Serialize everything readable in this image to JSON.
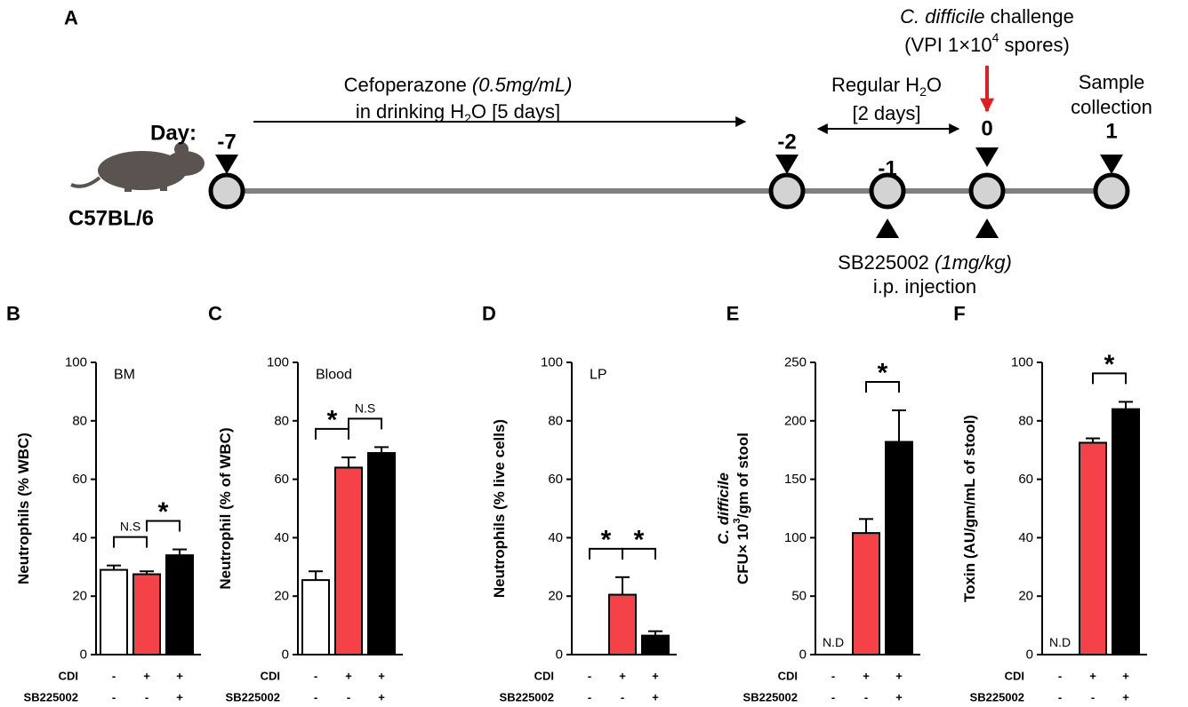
{
  "timeline": {
    "panel_label": "A",
    "day_prefix": "Day:",
    "strain": "C57BL/6",
    "days": [
      "-7",
      "-2",
      "-1",
      "0",
      "1"
    ],
    "texts": [
      [
        {
          "text": "C. difficile",
          "style": "italic"
        },
        {
          "text": " challenge"
        }
      ],
      [
        {
          "text": "(VPI 1×10"
        },
        {
          "text": "4",
          "style": "sup"
        },
        {
          "text": " spores)"
        }
      ],
      [
        {
          "text": "Cefoperazone "
        },
        {
          "text": "(0.5mg/mL)",
          "style": "italic"
        }
      ],
      [
        {
          "text": "in drinking H"
        },
        {
          "text": "2",
          "style": "sub"
        },
        {
          "text": "O [5 days]"
        }
      ],
      [
        {
          "text": "Regular H"
        },
        {
          "text": "2",
          "style": "sub"
        },
        {
          "text": "O"
        }
      ],
      [
        {
          "text": "[2 days]"
        }
      ],
      [
        {
          "text": "Sample"
        }
      ],
      [
        {
          "text": "collection"
        }
      ],
      [
        {
          "text": "SB225002 "
        },
        {
          "text": "(1mg/kg)",
          "style": "italic"
        }
      ],
      [
        {
          "text": "i.p. injection"
        }
      ]
    ]
  },
  "chart_data": [
    {
      "type": "bar",
      "panel_label": "B",
      "inner_label": "BM",
      "ylabel": [
        [
          {
            "text": "Neutrophils (% WBC)"
          }
        ]
      ],
      "ylim": [
        0,
        100
      ],
      "yticks": [
        0,
        20,
        40,
        60,
        80,
        100
      ],
      "values": [
        29,
        27.5,
        34
      ],
      "errors": [
        1.5,
        1,
        2
      ],
      "colors": [
        "#ffffff",
        "#f44248",
        "#000000"
      ],
      "conditions": [
        {
          "name": "CDI",
          "marks": [
            "-",
            "+",
            "+"
          ]
        },
        {
          "name": "SB225002",
          "marks": [
            "-",
            "-",
            "+"
          ]
        }
      ],
      "annotations": [
        {
          "text": "N.S",
          "between": [
            0,
            1
          ]
        },
        {
          "text": "*",
          "between": [
            1,
            2
          ]
        }
      ]
    },
    {
      "type": "bar",
      "panel_label": "C",
      "inner_label": "Blood",
      "ylabel": [
        [
          {
            "text": "Neutrophil (% of WBC)"
          }
        ]
      ],
      "ylim": [
        0,
        100
      ],
      "yticks": [
        0,
        20,
        40,
        60,
        80,
        100
      ],
      "values": [
        25.5,
        64,
        69
      ],
      "errors": [
        3,
        3.5,
        2
      ],
      "colors": [
        "#ffffff",
        "#f44248",
        "#000000"
      ],
      "conditions": [
        {
          "name": "CDI",
          "marks": [
            "-",
            "+",
            "+"
          ]
        },
        {
          "name": "SB225002",
          "marks": [
            "-",
            "-",
            "+"
          ]
        }
      ],
      "annotations": [
        {
          "text": "*",
          "between": [
            0,
            1
          ]
        },
        {
          "text": "N.S",
          "between": [
            1,
            2
          ]
        }
      ]
    },
    {
      "type": "bar",
      "panel_label": "D",
      "inner_label": "LP",
      "ylabel": [
        [
          {
            "text": "Neutrophils (% live cells)"
          }
        ]
      ],
      "ylim": [
        0,
        100
      ],
      "yticks": [
        0,
        20,
        40,
        60,
        80,
        100
      ],
      "values": [
        0,
        20.5,
        6.5
      ],
      "errors": [
        0,
        6,
        1.5
      ],
      "colors": [
        "#ffffff",
        "#f44248",
        "#000000"
      ],
      "conditions": [
        {
          "name": "CDI",
          "marks": [
            "-",
            "+",
            "+"
          ]
        },
        {
          "name": "SB225002",
          "marks": [
            "-",
            "-",
            "+"
          ]
        }
      ],
      "annotations": [
        {
          "text": "*",
          "between": [
            0,
            1
          ]
        },
        {
          "text": "*",
          "between": [
            1,
            2
          ]
        }
      ]
    },
    {
      "type": "bar",
      "panel_label": "E",
      "ylabel": [
        [
          {
            "text": "C. difficile",
            "style": "italic"
          }
        ],
        [
          {
            "text": "CFU× 10"
          },
          {
            "text": "3",
            "style": "sup"
          },
          {
            "text": "/gm of stool"
          }
        ]
      ],
      "ylim": [
        0,
        250
      ],
      "yticks": [
        0,
        50,
        100,
        150,
        200,
        250
      ],
      "values": [
        null,
        104,
        182
      ],
      "errors": [
        null,
        12,
        27
      ],
      "value_labels": [
        "N.D",
        null,
        null
      ],
      "colors": [
        "#ffffff",
        "#f44248",
        "#000000"
      ],
      "conditions": [
        {
          "name": "CDI",
          "marks": [
            "-",
            "+",
            "+"
          ]
        },
        {
          "name": "SB225002",
          "marks": [
            "-",
            "-",
            "+"
          ]
        }
      ],
      "annotations": [
        {
          "text": "*",
          "between": [
            1,
            2
          ]
        }
      ]
    },
    {
      "type": "bar",
      "panel_label": "F",
      "ylabel": [
        [
          {
            "text": "Toxin (AU/gm/mL of stool)"
          }
        ]
      ],
      "ylim": [
        0,
        100
      ],
      "yticks": [
        0,
        20,
        40,
        60,
        80,
        100
      ],
      "values": [
        null,
        72.5,
        84
      ],
      "errors": [
        null,
        1.5,
        2.5
      ],
      "value_labels": [
        "N.D",
        null,
        null
      ],
      "colors": [
        "#ffffff",
        "#f44248",
        "#000000"
      ],
      "conditions": [
        {
          "name": "CDI",
          "marks": [
            "-",
            "+",
            "+"
          ]
        },
        {
          "name": "SB225002",
          "marks": [
            "-",
            "-",
            "+"
          ]
        }
      ],
      "annotations": [
        {
          "text": "*",
          "between": [
            1,
            2
          ]
        }
      ]
    }
  ]
}
